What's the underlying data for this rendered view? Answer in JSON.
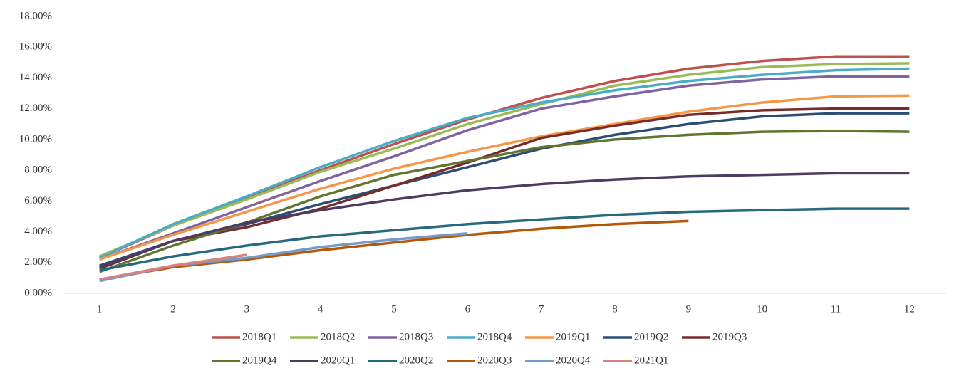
{
  "chart_data": {
    "type": "line",
    "x": [
      1,
      2,
      3,
      4,
      5,
      6,
      7,
      8,
      9,
      10,
      11,
      12
    ],
    "xlim": [
      0.5,
      12.5
    ],
    "xticks": [
      1,
      2,
      3,
      4,
      5,
      6,
      7,
      8,
      9,
      10,
      11,
      12
    ],
    "ylim": [
      0,
      18
    ],
    "yticks": [
      {
        "value": 0,
        "label": "0.00%"
      },
      {
        "value": 2,
        "label": "2.00%"
      },
      {
        "value": 4,
        "label": "4.00%"
      },
      {
        "value": 6,
        "label": "6.00%"
      },
      {
        "value": 8,
        "label": "8.00%"
      },
      {
        "value": 10,
        "label": "10.00%"
      },
      {
        "value": 12,
        "label": "12.00%"
      },
      {
        "value": 14,
        "label": "14.00%"
      },
      {
        "value": 16,
        "label": "16.00%"
      },
      {
        "value": 18,
        "label": "18.00%"
      }
    ],
    "grid": false,
    "legend": "bottom",
    "series": [
      {
        "name": "2018Q1",
        "color": "#c0504d",
        "values": [
          2.3,
          4.4,
          6.2,
          8.0,
          9.7,
          11.3,
          12.7,
          13.8,
          14.6,
          15.1,
          15.4,
          15.4
        ]
      },
      {
        "name": "2018Q2",
        "color": "#9bbb59",
        "values": [
          2.4,
          4.4,
          6.1,
          7.9,
          9.4,
          11.0,
          12.3,
          13.5,
          14.2,
          14.7,
          14.9,
          14.95
        ]
      },
      {
        "name": "2018Q3",
        "color": "#8064a2",
        "values": [
          2.2,
          3.9,
          5.6,
          7.3,
          8.9,
          10.6,
          12.0,
          12.8,
          13.5,
          13.9,
          14.1,
          14.1
        ]
      },
      {
        "name": "2018Q4",
        "color": "#4bacc6",
        "values": [
          2.3,
          4.5,
          6.3,
          8.2,
          9.9,
          11.4,
          12.4,
          13.2,
          13.8,
          14.2,
          14.5,
          14.6
        ]
      },
      {
        "name": "2019Q1",
        "color": "#f79646",
        "values": [
          2.2,
          3.8,
          5.3,
          6.8,
          8.1,
          9.2,
          10.2,
          11.0,
          11.8,
          12.4,
          12.8,
          12.85
        ]
      },
      {
        "name": "2019Q2",
        "color": "#2c4d75",
        "values": [
          1.8,
          3.4,
          4.5,
          5.8,
          7.0,
          8.2,
          9.4,
          10.3,
          11.0,
          11.5,
          11.7,
          11.7
        ]
      },
      {
        "name": "2019Q3",
        "color": "#772c2a",
        "values": [
          1.6,
          3.4,
          4.3,
          5.5,
          7.0,
          8.5,
          10.1,
          10.9,
          11.6,
          11.9,
          12.0,
          12.0
        ]
      },
      {
        "name": "2019Q4",
        "color": "#5f7530",
        "values": [
          1.4,
          3.1,
          4.6,
          6.3,
          7.7,
          8.6,
          9.5,
          10.0,
          10.3,
          10.5,
          10.55,
          10.5
        ]
      },
      {
        "name": "2020Q1",
        "color": "#4d3b62",
        "values": [
          1.7,
          3.4,
          4.6,
          5.4,
          6.1,
          6.7,
          7.1,
          7.4,
          7.6,
          7.7,
          7.8,
          7.8
        ]
      },
      {
        "name": "2020Q2",
        "color": "#276a7c",
        "values": [
          1.5,
          2.4,
          3.1,
          3.7,
          4.1,
          4.5,
          4.8,
          5.1,
          5.3,
          5.4,
          5.5,
          5.5
        ]
      },
      {
        "name": "2020Q3",
        "color": "#b65708",
        "values": [
          0.9,
          1.7,
          2.2,
          2.8,
          3.3,
          3.8,
          4.2,
          4.5,
          4.7,
          null,
          null,
          null
        ]
      },
      {
        "name": "2020Q4",
        "color": "#729aca",
        "values": [
          0.8,
          1.8,
          2.3,
          3.0,
          3.5,
          3.9,
          null,
          null,
          null,
          null,
          null,
          null
        ]
      },
      {
        "name": "2021Q1",
        "color": "#d6827f",
        "values": [
          0.9,
          1.8,
          2.5,
          null,
          null,
          null,
          null,
          null,
          null,
          null,
          null,
          null
        ]
      }
    ]
  }
}
